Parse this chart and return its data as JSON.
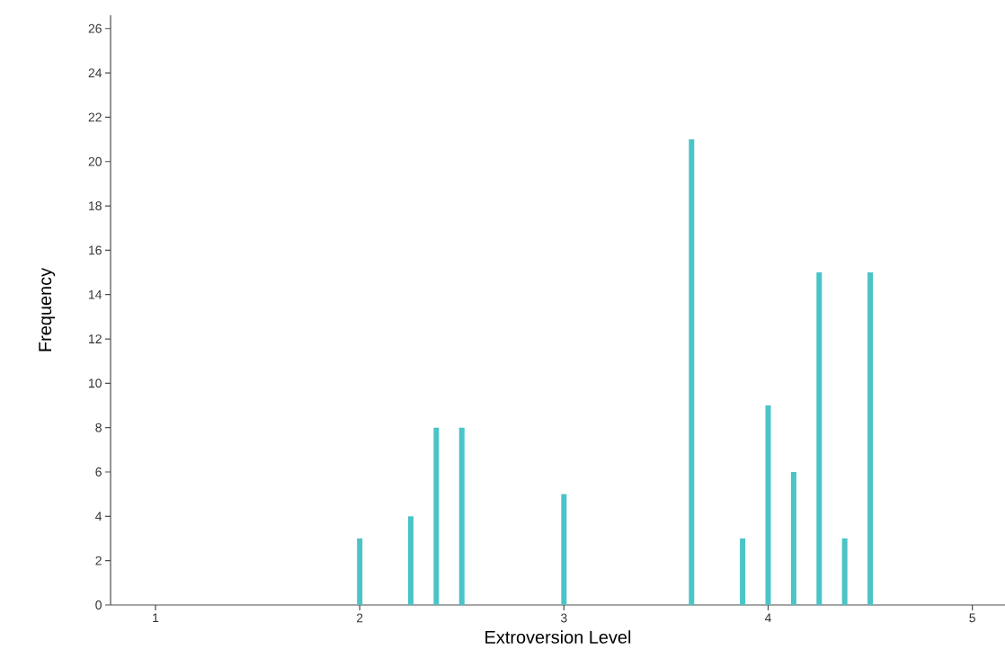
{
  "chart_data": {
    "type": "bar",
    "xlabel": "Extroversion Level",
    "ylabel": "Frequency",
    "x": [
      2.0,
      2.25,
      2.375,
      2.5,
      3.0,
      3.625,
      3.875,
      4.0,
      4.125,
      4.25,
      4.375,
      4.5
    ],
    "values": [
      3,
      4,
      8,
      8,
      5,
      21,
      3,
      9,
      6,
      15,
      3,
      15
    ],
    "color": "#4bc4c7",
    "xlim": [
      0.78,
      5.16
    ],
    "xticks": [
      1,
      2,
      3,
      4,
      5
    ],
    "ylim": [
      0,
      26.6
    ],
    "yticks": [
      0,
      2,
      4,
      6,
      8,
      10,
      12,
      14,
      16,
      18,
      20,
      22,
      24,
      26
    ]
  }
}
